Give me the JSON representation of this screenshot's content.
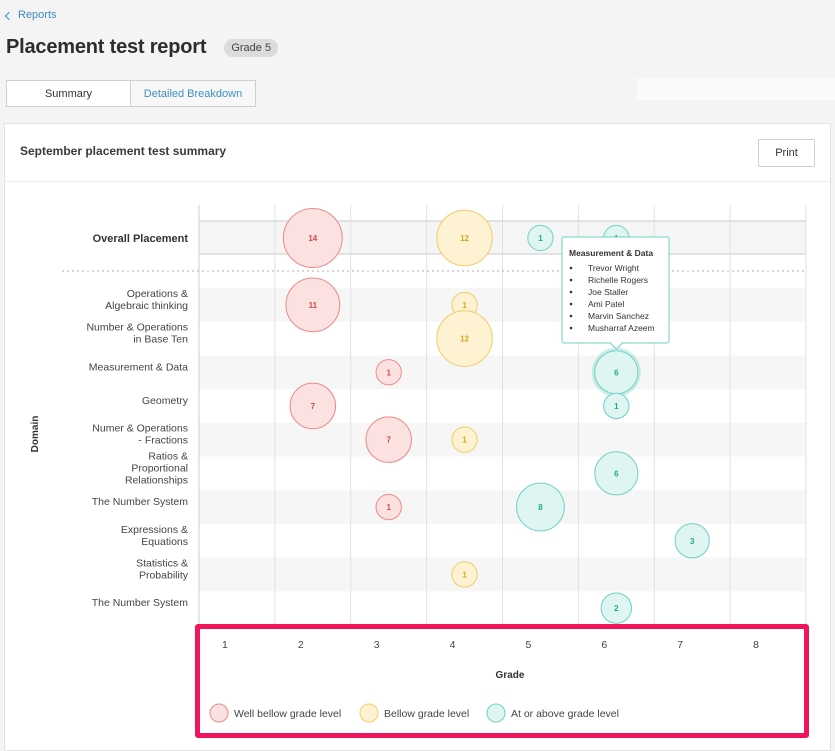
{
  "nav": {
    "back_label": "Reports"
  },
  "header": {
    "title": "Placement test report",
    "grade_badge": "Grade 5"
  },
  "tabs": [
    {
      "label": "Summary",
      "active": true
    },
    {
      "label": "Detailed Breakdown",
      "active": false
    }
  ],
  "card": {
    "title": "September placement test summary",
    "print_label": "Print"
  },
  "colors": {
    "well_below": {
      "stroke": "#ee8a88",
      "fill": "#fbe1e0",
      "text": "#d64a47"
    },
    "below": {
      "stroke": "#f2cc66",
      "fill": "#fdf3d3",
      "text": "#d9a520"
    },
    "at_above": {
      "stroke": "#6dd2c2",
      "fill": "#def5f1",
      "text": "#22a991"
    },
    "link": "#3c8dbc",
    "highlight": "#f0145c"
  },
  "chart_data": {
    "type": "scatter",
    "subtype": "bubble",
    "ylabel": "Domain",
    "xlabel": "Grade",
    "x_categories": [
      "1",
      "2",
      "3",
      "4",
      "5",
      "6",
      "7",
      "8"
    ],
    "summary_row": "Overall Placement",
    "domains": [
      "Operations & Algebraic thinking",
      "Number & Operations in Base Ten",
      "Measurement & Data",
      "Geometry",
      "Numer & Operations - Fractions",
      "Ratios & Proportional Relationships",
      "The Number System",
      "Expressions & Equations",
      "Statistics & Probability",
      "The Number System"
    ],
    "legend": [
      {
        "key": "well_below",
        "label": "Well bellow grade level"
      },
      {
        "key": "below",
        "label": "Bellow grade level"
      },
      {
        "key": "at_above",
        "label": "At or above grade level"
      }
    ],
    "points": [
      {
        "row": "Overall Placement",
        "grade": 2,
        "count": 14,
        "level": "well_below"
      },
      {
        "row": "Overall Placement",
        "grade": 4,
        "count": 12,
        "level": "below"
      },
      {
        "row": "Overall Placement",
        "grade": 5,
        "count": 1,
        "level": "at_above"
      },
      {
        "row": "Overall Placement",
        "grade": 6,
        "count": 1,
        "level": "at_above"
      },
      {
        "row": 0,
        "grade": 2,
        "count": 11,
        "level": "well_below"
      },
      {
        "row": 0,
        "grade": 4,
        "count": 1,
        "level": "below"
      },
      {
        "row": 1,
        "grade": 4,
        "count": 12,
        "level": "below"
      },
      {
        "row": 2,
        "grade": 3,
        "count": 1,
        "level": "well_below"
      },
      {
        "row": 2,
        "grade": 6,
        "count": 6,
        "level": "at_above",
        "hovered": true
      },
      {
        "row": 3,
        "grade": 2,
        "count": 7,
        "level": "well_below"
      },
      {
        "row": 3,
        "grade": 6,
        "count": 1,
        "level": "at_above"
      },
      {
        "row": 4,
        "grade": 3,
        "count": 7,
        "level": "well_below"
      },
      {
        "row": 4,
        "grade": 4,
        "count": 1,
        "level": "below"
      },
      {
        "row": 5,
        "grade": 6,
        "count": 6,
        "level": "at_above"
      },
      {
        "row": 6,
        "grade": 3,
        "count": 1,
        "level": "well_below"
      },
      {
        "row": 6,
        "grade": 5,
        "count": 8,
        "level": "at_above"
      },
      {
        "row": 7,
        "grade": 7,
        "count": 3,
        "level": "at_above"
      },
      {
        "row": 8,
        "grade": 4,
        "count": 1,
        "level": "below"
      },
      {
        "row": 9,
        "grade": 6,
        "count": 2,
        "level": "at_above"
      }
    ],
    "tooltip": {
      "title": "Measurement & Data",
      "students": [
        "Trevor Wright",
        "Richelle Rogers",
        "Joe Staller",
        "Ami Patel",
        "Marvin Sanchez",
        "Musharraf Azeem"
      ]
    }
  }
}
